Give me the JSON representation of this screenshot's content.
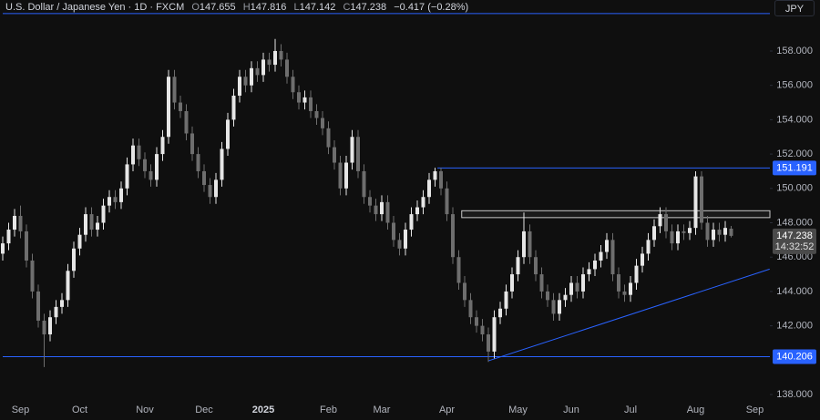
{
  "chart_data": {
    "type": "candlestick",
    "title": "U.S. Dollar / Japanese Yen · 1D · FXCM",
    "ohlc_labels": [
      "O",
      "H",
      "L",
      "C"
    ],
    "change": "−0.417 (−0.28%)",
    "currency": "JPY",
    "countdown": "14:32:52",
    "up_color": "#e6e6e6",
    "down_color": "#6e6e6e",
    "level_color": "#2962ff",
    "categories": [
      null,
      null,
      null,
      "Sep",
      null,
      null,
      null,
      null,
      null,
      null,
      null,
      null,
      null,
      "Oct",
      null,
      null,
      null,
      null,
      null,
      null,
      null,
      null,
      null,
      null,
      "Nov",
      null,
      null,
      null,
      null,
      null,
      null,
      null,
      null,
      null,
      "Dec",
      null,
      null,
      null,
      null,
      null,
      null,
      null,
      null,
      null,
      "2025",
      null,
      null,
      null,
      null,
      null,
      null,
      null,
      null,
      null,
      null,
      "Feb",
      null,
      null,
      null,
      null,
      null,
      null,
      null,
      null,
      "Mar",
      null,
      null,
      null,
      null,
      null,
      null,
      null,
      null,
      null,
      null,
      "Apr",
      null,
      null,
      null,
      null,
      null,
      null,
      null,
      null,
      null,
      null,
      null,
      "May",
      null,
      null,
      null,
      null,
      null,
      null,
      null,
      null,
      "Jun",
      null,
      null,
      null,
      null,
      null,
      null,
      null,
      null,
      null,
      "Jul",
      null,
      null,
      null,
      null,
      null,
      null,
      null,
      null,
      null,
      null,
      "Aug",
      null,
      null,
      null,
      null,
      null,
      null,
      null,
      null,
      null,
      "Sep",
      null,
      null
    ],
    "open": [
      146.2,
      146.8,
      147.6,
      148.4,
      147.5,
      145.8,
      144.0,
      142.3,
      141.5,
      142.5,
      143.1,
      143.5,
      145.2,
      146.5,
      147.3,
      148.5,
      147.6,
      148.0,
      149.0,
      149.5,
      149.2,
      150.0,
      151.4,
      152.5,
      151.7,
      151.0,
      150.5,
      152.0,
      153.0,
      156.5,
      155.0,
      154.5,
      153.2,
      152.0,
      151.0,
      150.2,
      149.5,
      150.5,
      152.3,
      154.0,
      155.4,
      156.5,
      156.0,
      157.0,
      156.6,
      157.5,
      157.2,
      158.0,
      157.5,
      156.5,
      155.6,
      155.0,
      155.3,
      154.5,
      154.1,
      153.5,
      152.4,
      151.5,
      150.0,
      151.5,
      153.0,
      151.0,
      149.5,
      149.0,
      148.5,
      149.2,
      148.0,
      147.0,
      146.5,
      147.6,
      148.5,
      148.9,
      149.5,
      150.5,
      151.0,
      150.0,
      148.5,
      146.0,
      144.5,
      143.5,
      142.5,
      142.0,
      141.5,
      140.5,
      142.5,
      143.0,
      144.0,
      145.0,
      146.0,
      147.5,
      146.0,
      145.0,
      144.0,
      143.5,
      142.7,
      143.5,
      143.8,
      144.5,
      144.0,
      145.0,
      145.3,
      145.8,
      146.3,
      147.0,
      145.0,
      144.0,
      143.8,
      144.5,
      145.5,
      146.2,
      147.0,
      147.8,
      148.5,
      147.5,
      146.8,
      147.5,
      147.4,
      147.7,
      150.7,
      148.0,
      147.0,
      147.6,
      147.3,
      147.655,
      null,
      null,
      null,
      null,
      null,
      null
    ],
    "high": [
      147.2,
      148.0,
      148.8,
      149.0,
      147.9,
      146.2,
      144.4,
      142.7,
      142.9,
      143.5,
      143.9,
      145.6,
      146.9,
      147.7,
      148.9,
      148.9,
      148.4,
      149.4,
      149.9,
      149.9,
      150.4,
      151.8,
      152.9,
      152.9,
      152.1,
      151.4,
      152.4,
      153.4,
      156.9,
      156.9,
      155.4,
      154.9,
      153.6,
      152.4,
      151.4,
      150.6,
      150.9,
      152.7,
      154.4,
      155.8,
      156.9,
      156.9,
      157.4,
      157.4,
      157.9,
      157.9,
      158.7,
      158.4,
      157.9,
      156.9,
      156.0,
      155.7,
      155.7,
      154.9,
      154.5,
      153.9,
      152.8,
      151.9,
      151.9,
      153.4,
      153.4,
      151.4,
      149.9,
      149.4,
      149.6,
      149.6,
      148.4,
      147.4,
      148.0,
      148.9,
      149.3,
      149.9,
      150.9,
      151.2,
      151.2,
      150.4,
      148.9,
      146.4,
      144.9,
      143.9,
      142.9,
      142.4,
      141.9,
      142.9,
      143.4,
      144.4,
      145.4,
      146.4,
      148.6,
      147.9,
      146.4,
      145.4,
      144.4,
      143.9,
      143.9,
      144.2,
      144.9,
      144.9,
      145.4,
      145.7,
      146.2,
      146.7,
      147.4,
      147.4,
      145.4,
      144.4,
      144.9,
      145.9,
      146.6,
      147.4,
      148.2,
      148.9,
      148.9,
      147.9,
      147.9,
      147.9,
      148.1,
      151.0,
      151.0,
      148.4,
      148.0,
      148.0,
      148.1,
      147.816,
      null,
      null,
      null,
      null,
      null,
      null
    ],
    "low": [
      145.8,
      146.4,
      147.2,
      147.1,
      145.4,
      143.6,
      141.9,
      139.6,
      141.1,
      142.1,
      142.7,
      143.1,
      144.8,
      146.1,
      146.9,
      147.2,
      147.2,
      147.6,
      148.6,
      148.8,
      148.8,
      149.6,
      151.0,
      151.3,
      150.6,
      150.1,
      150.1,
      151.6,
      152.6,
      154.6,
      154.1,
      152.8,
      151.6,
      150.6,
      149.8,
      149.1,
      149.1,
      150.1,
      151.9,
      153.6,
      155.0,
      155.6,
      155.6,
      156.2,
      156.2,
      156.8,
      156.8,
      157.1,
      156.1,
      155.2,
      154.6,
      154.6,
      154.1,
      153.7,
      153.1,
      152.0,
      151.1,
      149.6,
      149.6,
      151.1,
      150.6,
      149.1,
      148.6,
      148.1,
      148.1,
      147.6,
      146.6,
      146.1,
      146.1,
      147.2,
      148.1,
      148.5,
      149.1,
      150.1,
      149.6,
      148.1,
      145.6,
      144.1,
      143.1,
      142.1,
      141.6,
      141.1,
      139.9,
      140.1,
      142.1,
      142.6,
      143.6,
      144.6,
      145.6,
      145.6,
      144.6,
      143.6,
      143.1,
      142.3,
      142.3,
      143.1,
      143.4,
      143.6,
      143.6,
      144.6,
      144.9,
      145.4,
      145.9,
      144.6,
      143.6,
      143.4,
      143.4,
      144.1,
      145.1,
      145.8,
      146.6,
      147.4,
      147.1,
      146.4,
      146.4,
      147.0,
      147.0,
      147.3,
      147.6,
      146.6,
      146.6,
      146.9,
      146.9,
      147.142,
      null,
      null,
      null,
      null,
      null,
      null
    ],
    "close": [
      146.8,
      147.6,
      148.4,
      147.5,
      145.8,
      144.0,
      142.3,
      141.5,
      142.5,
      143.1,
      143.5,
      145.2,
      146.5,
      147.3,
      148.5,
      147.6,
      148.0,
      149.0,
      149.5,
      149.2,
      150.0,
      151.4,
      152.5,
      151.7,
      151.0,
      150.5,
      152.0,
      153.0,
      156.5,
      155.0,
      154.5,
      153.2,
      152.0,
      151.0,
      150.2,
      149.5,
      150.5,
      152.3,
      154.0,
      155.4,
      156.5,
      156.0,
      157.0,
      156.6,
      157.5,
      157.2,
      158.0,
      157.5,
      156.5,
      155.6,
      155.0,
      155.3,
      154.5,
      154.1,
      153.5,
      152.4,
      151.5,
      150.0,
      151.5,
      153.0,
      151.0,
      149.5,
      149.0,
      148.5,
      149.2,
      148.0,
      147.0,
      146.5,
      147.6,
      148.5,
      148.9,
      149.5,
      150.5,
      151.0,
      150.0,
      148.5,
      146.0,
      144.5,
      143.5,
      142.5,
      142.0,
      141.5,
      140.5,
      142.5,
      143.0,
      144.0,
      145.0,
      146.0,
      147.5,
      146.0,
      145.0,
      144.0,
      143.5,
      142.7,
      143.5,
      143.8,
      144.5,
      144.0,
      145.0,
      145.3,
      145.8,
      146.3,
      147.0,
      145.0,
      144.0,
      143.8,
      144.5,
      145.5,
      146.2,
      147.0,
      147.8,
      148.5,
      147.5,
      146.8,
      147.5,
      147.4,
      147.7,
      150.7,
      148.0,
      147.0,
      147.6,
      147.3,
      147.7,
      147.238,
      null,
      null,
      null,
      null,
      null,
      null
    ],
    "ylim": [
      137.63,
      160.97
    ],
    "yticks": [
      {
        "value": 138,
        "label": "138.000"
      },
      {
        "value": 142,
        "label": "142.000"
      },
      {
        "value": 144,
        "label": "144.000"
      },
      {
        "value": 146,
        "label": "146.000"
      },
      {
        "value": 148,
        "label": "148.000"
      },
      {
        "value": 150,
        "label": "150.000"
      },
      {
        "value": 152,
        "label": "152.000"
      },
      {
        "value": 154,
        "label": "154.000"
      },
      {
        "value": 156,
        "label": "156.000"
      },
      {
        "value": 158,
        "label": "158.000"
      }
    ],
    "levels": [
      {
        "value": 151.191,
        "start": 73.4,
        "labeled": true
      },
      {
        "value": 140.206,
        "start": 0,
        "labeled": true
      },
      {
        "value": 160.18,
        "start": 0,
        "labeled": false
      }
    ],
    "zone": {
      "start": 77.5,
      "low": 148.3,
      "high": 148.7
    },
    "trendline": {
      "from": [
        82,
        139.96
      ],
      "to": [
        129.5,
        145.3
      ]
    }
  }
}
